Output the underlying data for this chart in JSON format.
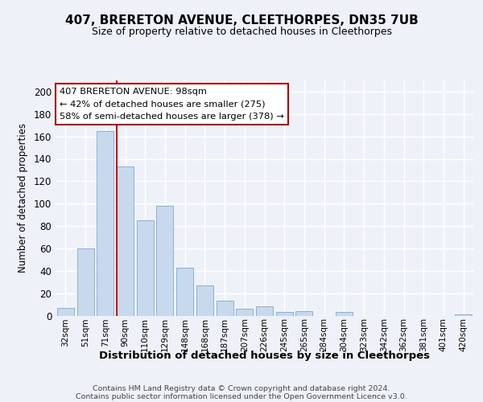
{
  "title": "407, BRERETON AVENUE, CLEETHORPES, DN35 7UB",
  "subtitle": "Size of property relative to detached houses in Cleethorpes",
  "xlabel": "Distribution of detached houses by size in Cleethorpes",
  "ylabel": "Number of detached properties",
  "bar_labels": [
    "32sqm",
    "51sqm",
    "71sqm",
    "90sqm",
    "110sqm",
    "129sqm",
    "148sqm",
    "168sqm",
    "187sqm",
    "207sqm",
    "226sqm",
    "245sqm",
    "265sqm",
    "284sqm",
    "304sqm",
    "323sqm",
    "342sqm",
    "362sqm",
    "381sqm",
    "401sqm",
    "420sqm"
  ],
  "bar_values": [
    7,
    60,
    165,
    133,
    85,
    98,
    43,
    27,
    13,
    6,
    8,
    3,
    4,
    0,
    3,
    0,
    0,
    0,
    0,
    0,
    1
  ],
  "bar_color": "#c8d9ee",
  "bar_edge_color": "#7ba7cc",
  "red_line_x": 2.575,
  "annotation_title": "407 BRERETON AVENUE: 98sqm",
  "annotation_line1": "← 42% of detached houses are smaller (275)",
  "annotation_line2": "58% of semi-detached houses are larger (378) →",
  "annotation_box_color": "#ffffff",
  "annotation_box_edge": "#aa0000",
  "ylim": [
    0,
    210
  ],
  "yticks": [
    0,
    20,
    40,
    60,
    80,
    100,
    120,
    140,
    160,
    180,
    200
  ],
  "footer_line1": "Contains HM Land Registry data © Crown copyright and database right 2024.",
  "footer_line2": "Contains public sector information licensed under the Open Government Licence v3.0.",
  "background_color": "#eef2f8"
}
